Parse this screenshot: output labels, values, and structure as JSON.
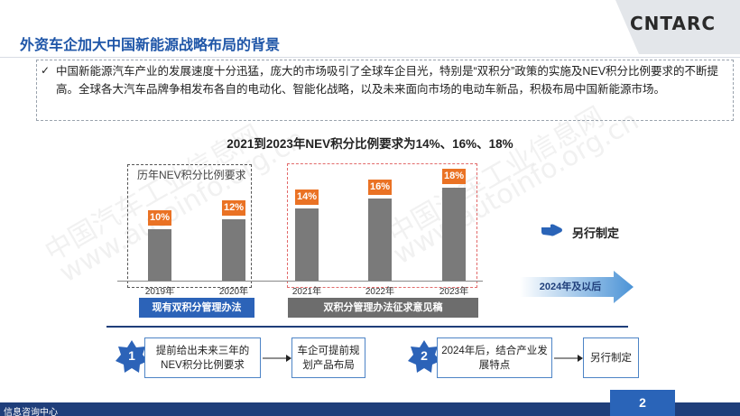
{
  "header": {
    "title": "外资车企加大中国新能源战略布局的背景",
    "logo_text": "CNTARC"
  },
  "intro": {
    "check_symbol": "✓",
    "text": "中国新能源汽车产业的发展速度十分迅猛，庞大的市场吸引了全球车企目光，特别是“双积分”政策的实施及NEV积分比例要求的不断提高。全球各大汽车品牌争相发布各自的电动化、智能化战略，以及未来面向市场的电动车新品，积极布局中国新能源市场。"
  },
  "chart_data": {
    "type": "bar",
    "title": "2021到2023年NEV积分比例要求为14%、16%、18%",
    "categories": [
      "2019年",
      "2020年",
      "2021年",
      "2022年",
      "2023年"
    ],
    "values": [
      10,
      12,
      14,
      16,
      18
    ],
    "value_labels": [
      "10%",
      "12%",
      "14%",
      "16%",
      "18%"
    ],
    "unit": "%",
    "ylim": [
      0,
      20
    ],
    "colors": {
      "bar": "#7a7a7a",
      "label_bg": "#ea7224"
    },
    "groups": [
      {
        "label": "历年NEV积分比例要求",
        "band": "现有双积分管理办法",
        "categories": [
          "2019年",
          "2020年"
        ],
        "band_color": "#2c63b8"
      },
      {
        "label": "",
        "band": "双积分管理办法征求意见稿",
        "categories": [
          "2021年",
          "2022年",
          "2023年"
        ],
        "band_color": "#6d6d6d"
      }
    ]
  },
  "side": {
    "note": "另行制定",
    "arrow_label": "2024年及以后"
  },
  "flow": [
    {
      "step": "1",
      "items": [
        "提前给出未来三年的NEV积分比例要求",
        "车企可提前规划产品布局"
      ]
    },
    {
      "step": "2",
      "items": [
        "2024年后，结合产业发展特点",
        "另行制定"
      ]
    }
  ],
  "footer": {
    "left_text": "信息咨询中心",
    "page_number": "2"
  },
  "watermarks": [
    "中国汽车工业信息网",
    "www.autoinfo.org.cn"
  ],
  "colors": {
    "accent": "#1f56a8",
    "navy": "#1f3e7a",
    "orange": "#ea7224"
  }
}
